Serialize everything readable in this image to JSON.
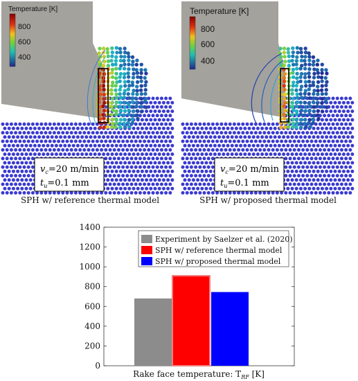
{
  "panels": [
    {
      "caption": "SPH w/ reference thermal model",
      "colorbar": {
        "title": "Temperature [K]",
        "ticks": [
          "800",
          "600",
          "400"
        ]
      },
      "params": {
        "vc": "=20 m/min",
        "tu": "=0.1 mm"
      }
    },
    {
      "caption": "SPH w/ proposed thermal model",
      "colorbar": {
        "title": "Temperature [K]",
        "ticks": [
          "800",
          "600",
          "400"
        ]
      },
      "params": {
        "vc": "=20 m/min",
        "tu": "=0.1 mm"
      }
    }
  ],
  "chart_data": {
    "type": "bar",
    "categories": [
      "Experiment by Saelzer et al. (2020)",
      "SPH w/ reference thermal model",
      "SPH w/ proposed thermal model"
    ],
    "values": [
      680,
      910,
      745
    ],
    "colors": [
      "#8c8c8c",
      "#ff0000",
      "#0000ff"
    ],
    "xlabel_main": "Rake face temperature: T",
    "xlabel_sub": "RF",
    "xlabel_unit": " [K]",
    "ylim": [
      0,
      1400
    ],
    "yticks": [
      "0",
      "200",
      "400",
      "600",
      "800",
      "1000",
      "1200",
      "1400"
    ],
    "legend_position": "top-right",
    "grid": false
  }
}
